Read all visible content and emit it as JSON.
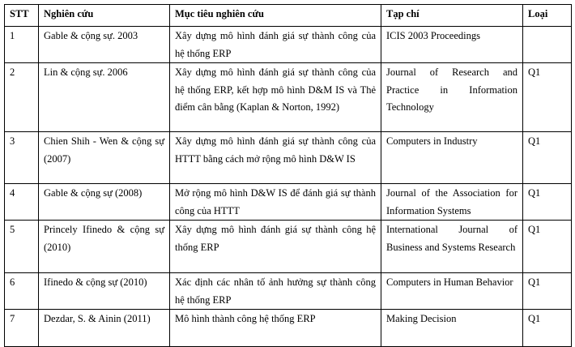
{
  "table": {
    "header": [
      "STT",
      "Nghiên cứu",
      "Mục tiêu nghiên cứu",
      "Tạp chí",
      "Loại"
    ],
    "rows": [
      [
        "1",
        "Gable & cộng sự. 2003",
        "Xây dựng mô hình đánh giá sự thành công của hệ thống ERP",
        "ICIS 2003 Proceedings",
        null
      ],
      [
        "2",
        "Lin & cộng sự. 2006",
        "Xây dựng mô hình đánh giá sự thành công của hệ thống ERP, kết hợp mô hình D&M IS và Thẻ điểm cân bằng (Kaplan & Norton, 1992)",
        "Journal of Research and Practice in Information Technology",
        "Q1"
      ],
      [
        "3",
        "Chien Shih - Wen & cộng sự (2007)",
        "Xây dựng mô hình đánh giá sự thành công của HTTT bằng cách mở rộng mô hình D&W IS",
        "Computers in Industry",
        "Q1"
      ],
      [
        "4",
        "Gable & cộng sự (2008)",
        "Mở rộng mô hình D&W IS để đánh giá sự thành công của HTTT",
        "Journal of the Association for Information Systems",
        "Q1"
      ],
      [
        "5",
        "Princely Ifinedo & cộng sự (2010)",
        "Xây dựng mô hình đánh giá sự thành công hệ thống ERP",
        "International Journal of Business and Systems Research",
        "Q1"
      ],
      [
        "6",
        "Ifinedo & cộng sự (2010)",
        "Xác định các nhân tố ảnh hưởng sự thành công hệ thống ERP",
        "Computers in Human Behavior",
        "Q1"
      ],
      [
        "7",
        "Dezdar, S. & Ainin (2011)",
        "Mô hình thành công hệ thống ERP",
        "Making Decision",
        "Q1"
      ]
    ]
  }
}
